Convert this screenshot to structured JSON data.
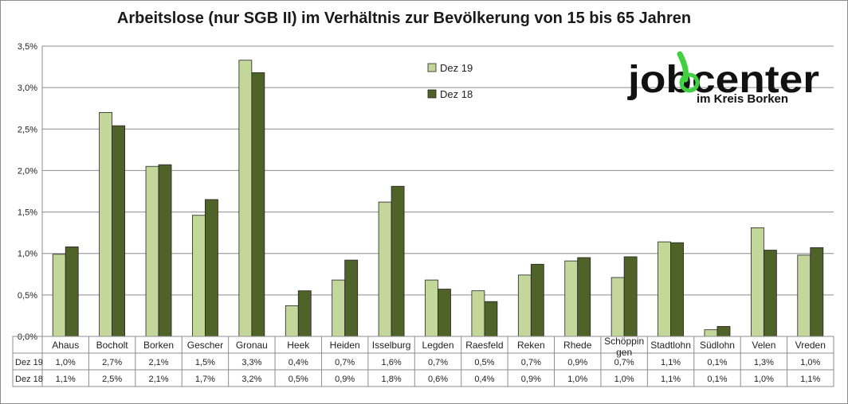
{
  "chart_data": {
    "type": "bar",
    "title": "Arbeitslose (nur SGB II) im Verhältnis zur Bevölkerung von 15 bis 65 Jahren",
    "xlabel": "",
    "ylabel": "",
    "ylim": [
      0,
      3.5
    ],
    "yticks": [
      "0,0%",
      "0,5%",
      "1,0%",
      "1,5%",
      "2,0%",
      "2,5%",
      "3,0%",
      "3,5%"
    ],
    "grid": true,
    "legend_position": "top-center",
    "categories": [
      "Ahaus",
      "Bocholt",
      "Borken",
      "Gescher",
      "Gronau",
      "Heek",
      "Heiden",
      "Isselburg",
      "Legden",
      "Raesfeld",
      "Reken",
      "Rhede",
      "Schöppingen",
      "Stadtlohn",
      "Südlohn",
      "Velen",
      "Vreden"
    ],
    "category_labels": [
      [
        "Ahaus"
      ],
      [
        "Bocholt"
      ],
      [
        "Borken"
      ],
      [
        "Gescher"
      ],
      [
        "Gronau"
      ],
      [
        "Heek"
      ],
      [
        "Heiden"
      ],
      [
        "Isselburg"
      ],
      [
        "Legden"
      ],
      [
        "Raesfeld"
      ],
      [
        "Reken"
      ],
      [
        "Rhede"
      ],
      [
        "Schöppin",
        "gen"
      ],
      [
        "Stadtlohn"
      ],
      [
        "Südlohn"
      ],
      [
        "Velen"
      ],
      [
        "Vreden"
      ]
    ],
    "series": [
      {
        "name": "Dez 19",
        "color": "#c4d79b",
        "values": [
          0.99,
          2.7,
          2.05,
          1.46,
          3.33,
          0.37,
          0.68,
          1.62,
          0.68,
          0.55,
          0.74,
          0.91,
          0.71,
          1.14,
          0.08,
          1.31,
          0.98
        ],
        "table_labels": [
          "1,0%",
          "2,7%",
          "2,1%",
          "1,5%",
          "3,3%",
          "0,4%",
          "0,7%",
          "1,6%",
          "0,7%",
          "0,5%",
          "0,7%",
          "0,9%",
          "0,7%",
          "1,1%",
          "0,1%",
          "1,3%",
          "1,0%"
        ]
      },
      {
        "name": "Dez 18",
        "color": "#4f6228",
        "values": [
          1.08,
          2.54,
          2.07,
          1.65,
          3.18,
          0.55,
          0.92,
          1.81,
          0.57,
          0.42,
          0.87,
          0.95,
          0.96,
          1.13,
          0.12,
          1.04,
          1.07
        ],
        "table_labels": [
          "1,1%",
          "2,5%",
          "2,1%",
          "1,7%",
          "3,2%",
          "0,5%",
          "0,9%",
          "1,8%",
          "0,6%",
          "0,4%",
          "0,9%",
          "1,0%",
          "1,0%",
          "1,1%",
          "0,1%",
          "1,0%",
          "1,1%"
        ]
      }
    ]
  },
  "logo": {
    "word": "jobcenter",
    "tagline": "im Kreis Borken",
    "accent_color": "#3fd13f"
  }
}
